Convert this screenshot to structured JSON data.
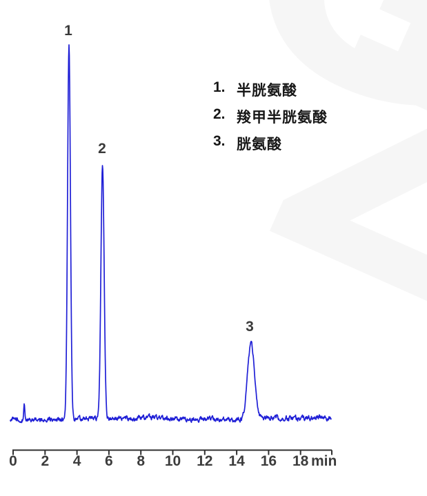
{
  "watermark": {
    "letters": [
      "G",
      "Z"
    ]
  },
  "legend": {
    "items": [
      {
        "number": "1.",
        "name": "半胱氨酸"
      },
      {
        "number": "2.",
        "name": "羧甲半胱氨酸"
      },
      {
        "number": "3.",
        "name": "胱氨酸"
      }
    ]
  },
  "chart_data": {
    "type": "line",
    "title": "",
    "xlabel": "min",
    "ylabel": "",
    "x_unit_label": "min",
    "x_range": [
      0,
      20
    ],
    "x_ticks": [
      0,
      2,
      4,
      6,
      8,
      10,
      12,
      14,
      16,
      18
    ],
    "x_tick_labels": [
      "0",
      "2",
      "4",
      "6",
      "8",
      "10",
      "12",
      "14",
      "16",
      "18"
    ],
    "grid": "off",
    "legend_position": "upper-right",
    "trace_color": "#1f1fd6",
    "axis_color": "#303030",
    "peaks": [
      {
        "label": "1",
        "compound": "半胱氨酸",
        "retention_min": 3.5,
        "relative_height": 1.0,
        "sigma_min": 0.09
      },
      {
        "label": "2",
        "compound": "羧甲半胱氨酸",
        "retention_min": 5.6,
        "relative_height": 0.677,
        "sigma_min": 0.1
      },
      {
        "label": "3",
        "compound": "胱氨酸",
        "retention_min": 14.9,
        "relative_height": 0.203,
        "sigma_min": 0.22
      }
    ],
    "artifacts": [
      {
        "retention_min": 0.7,
        "relative_height": 0.045,
        "sigma_min": 0.03
      }
    ],
    "baseline_noise_relative": 0.008
  }
}
